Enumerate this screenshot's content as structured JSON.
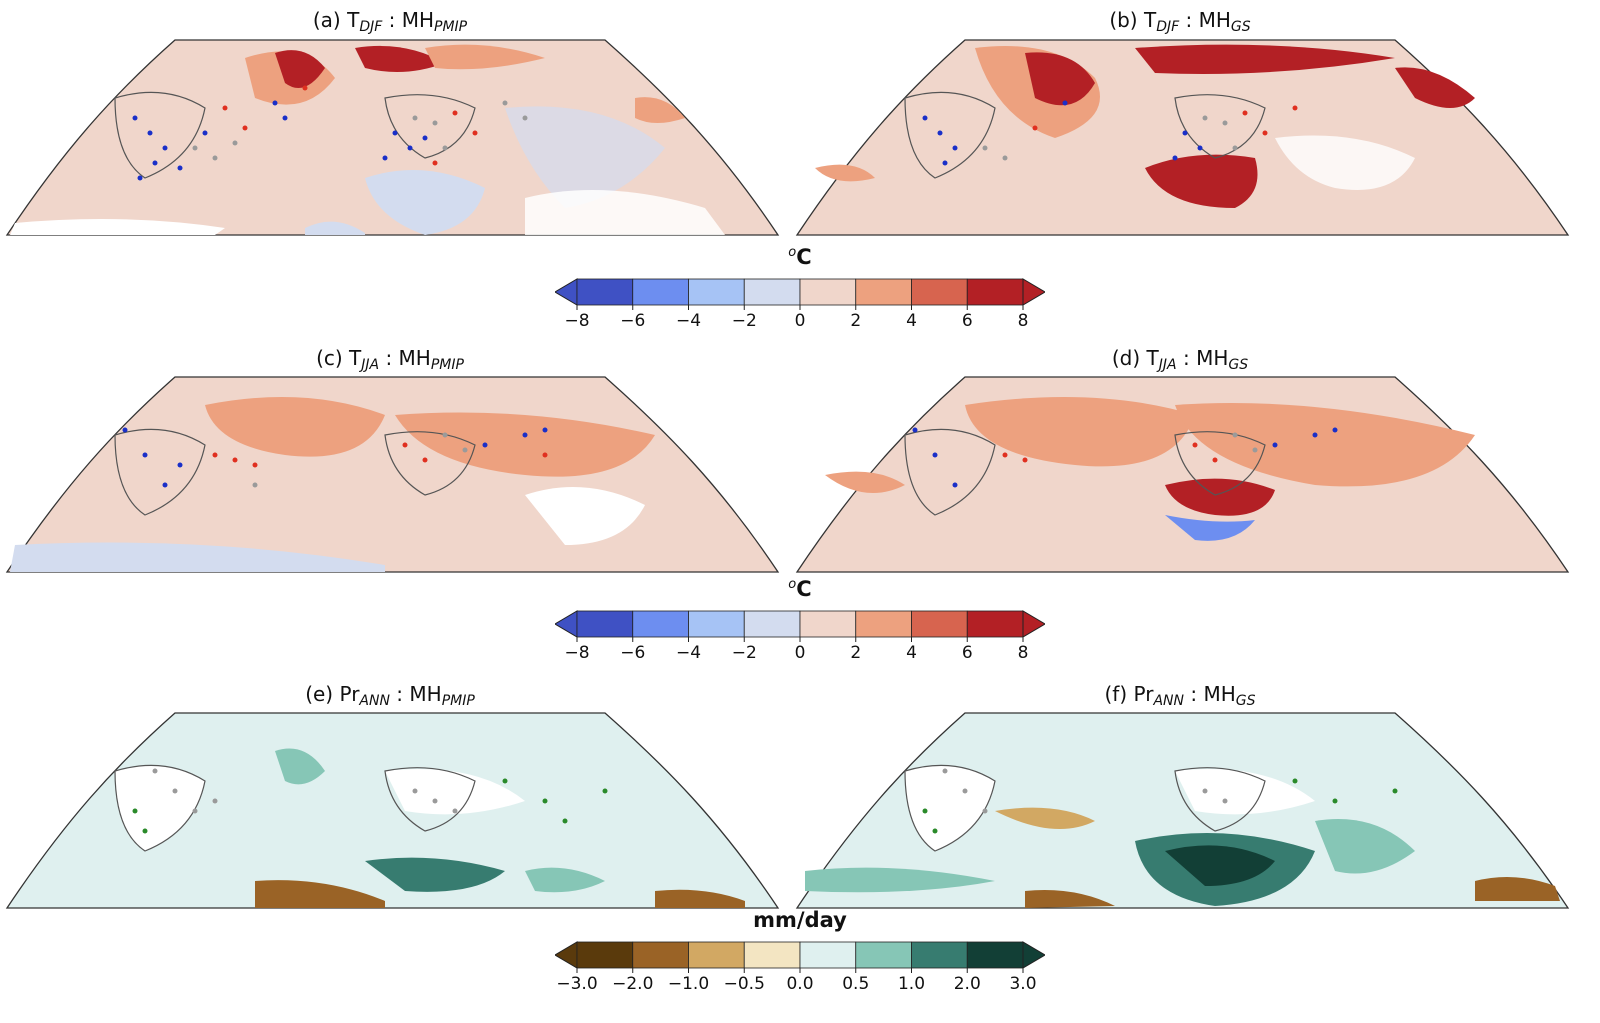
{
  "panels": [
    {
      "id": "a",
      "prefix": "(a) ",
      "var": "T",
      "var_sub": "DJF",
      "sep": " : ",
      "model": "MH",
      "model_sub": "PMIP"
    },
    {
      "id": "b",
      "prefix": "(b) ",
      "var": "T",
      "var_sub": "DJF",
      "sep": " : ",
      "model": "MH",
      "model_sub": "GS"
    },
    {
      "id": "c",
      "prefix": "(c) ",
      "var": "T",
      "var_sub": "JJA",
      "sep": " : ",
      "model": "MH",
      "model_sub": "PMIP"
    },
    {
      "id": "d",
      "prefix": "(d) ",
      "var": "T",
      "var_sub": "JJA",
      "sep": " : ",
      "model": "MH",
      "model_sub": "GS"
    },
    {
      "id": "e",
      "prefix": "(e) ",
      "var": "Pr",
      "var_sub": "ANN",
      "sep": " : ",
      "model": "MH",
      "model_sub": "PMIP"
    },
    {
      "id": "f",
      "prefix": "(f) ",
      "var": "Pr",
      "var_sub": "ANN",
      "sep": " : ",
      "model": "MH",
      "model_sub": "GS"
    }
  ],
  "colorbars": [
    {
      "unit_sup": "o",
      "unit": "C",
      "ticks": [
        "−8",
        "−6",
        "−4",
        "−2",
        "0",
        "2",
        "4",
        "6",
        "8"
      ],
      "colors": [
        "#3f51c4",
        "#6d8ef0",
        "#a6c3f5",
        "#d3dcef",
        "#f0d6cb",
        "#eda17f",
        "#d7644f",
        "#b32025"
      ]
    },
    {
      "unit_sup": "o",
      "unit": "C",
      "ticks": [
        "−8",
        "−6",
        "−4",
        "−2",
        "0",
        "2",
        "4",
        "6",
        "8"
      ],
      "colors": [
        "#3f51c4",
        "#6d8ef0",
        "#a6c3f5",
        "#d3dcef",
        "#f0d6cb",
        "#eda17f",
        "#d7644f",
        "#b32025"
      ]
    },
    {
      "unit_sup": "",
      "unit": "mm/day",
      "ticks": [
        "−3.0",
        "−2.0",
        "−1.0",
        "−0.5",
        "0.0",
        "0.5",
        "1.0",
        "2.0",
        "3.0"
      ],
      "colors": [
        "#5a3a0c",
        "#9a6326",
        "#d2a863",
        "#f3e5c2",
        "#dff0ef",
        "#86c6b6",
        "#377c70",
        "#123f36"
      ]
    }
  ],
  "colors": {
    "temp_background": "#f0d6cb",
    "temp_warm": "#eda17f",
    "temp_hot": "#b32025",
    "temp_cool": "#d3dcef",
    "precip_background": "#dff0ef",
    "precip_wet": "#86c6b6",
    "precip_very_wet": "#123f36",
    "precip_dry": "#9a6326",
    "coastline": "#555555",
    "dot_blue": "#1a2fc8",
    "dot_red": "#e03020",
    "dot_grey": "#9a9a9a",
    "dot_green": "#2a8a2a"
  }
}
